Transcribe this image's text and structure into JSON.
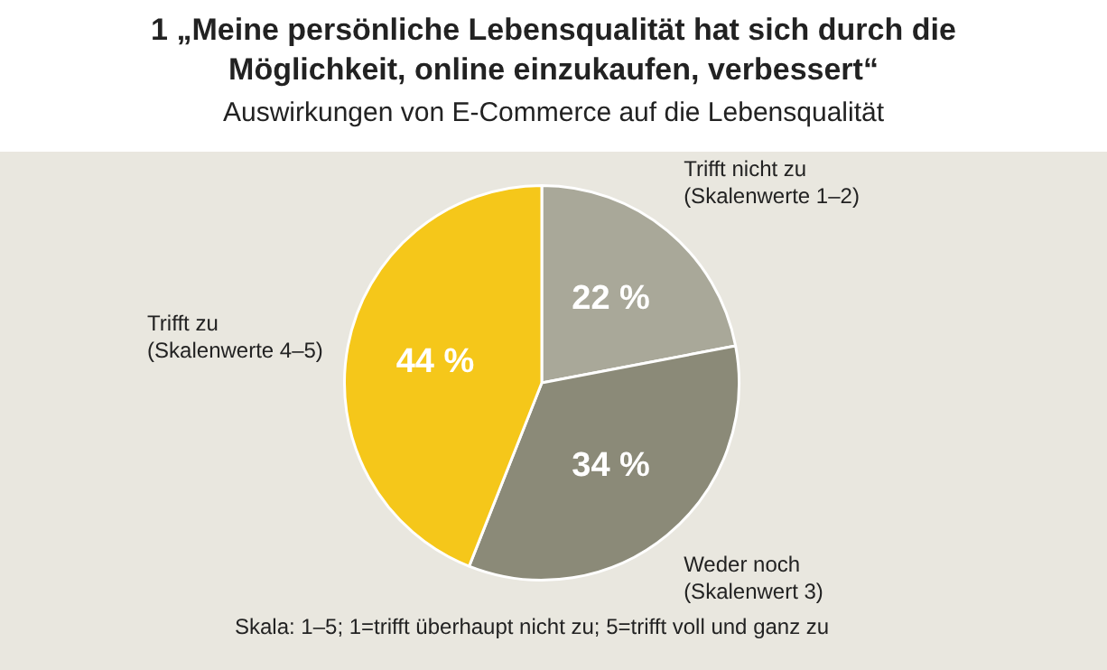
{
  "chart_data": {
    "type": "pie",
    "title": "1 „Meine persönliche Lebensqualität hat sich durch die Möglichkeit, online einzukaufen, verbessert“",
    "subtitle": "Auswirkungen von E-Commerce auf die Lebensqualität",
    "categories": [
      "Trifft nicht zu (Skalenwerte 1–2)",
      "Weder noch (Skalenwert 3)",
      "Trifft zu (Skalenwerte 4–5)"
    ],
    "values": [
      22,
      34,
      44
    ],
    "colors": [
      "#a9a899",
      "#8b8a78",
      "#f5c71a"
    ],
    "value_labels": [
      "22 %",
      "34 %",
      "44 %"
    ],
    "annotations": [
      "Skala: 1–5; 1=trifft überhaupt nicht zu; 5=trifft voll und ganz zu"
    ]
  }
}
